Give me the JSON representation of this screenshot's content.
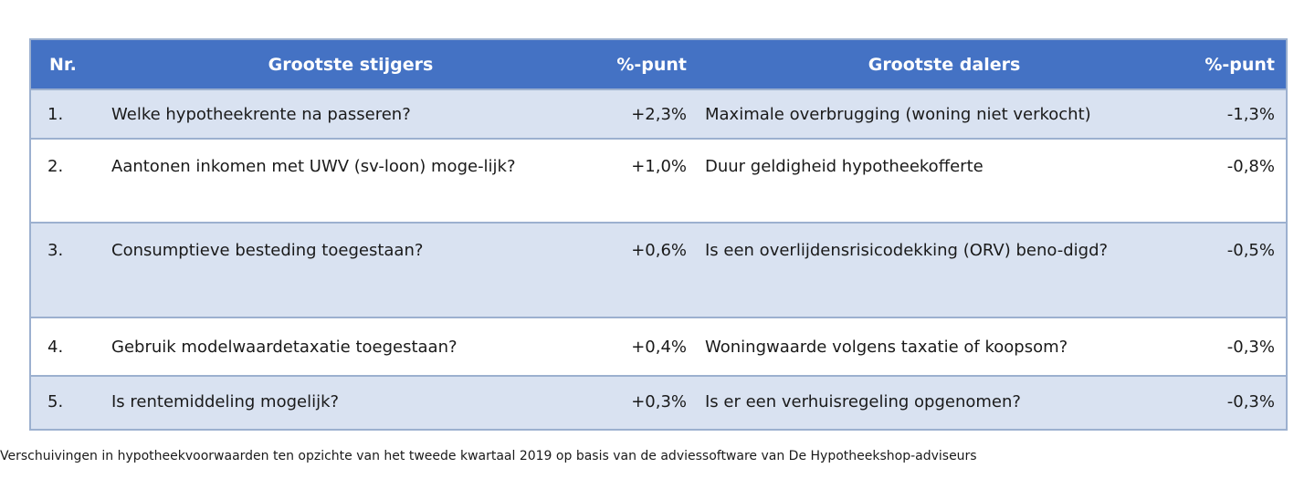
{
  "table": {
    "headers": {
      "nr": "Nr.",
      "risers": "Grootste stijgers",
      "risers_unit": "%-punt",
      "fallers": "Grootste dalers",
      "fallers_unit": "%-punt"
    },
    "rows": [
      {
        "nr": "1.",
        "riser": "Welke hypotheekrente na passeren?",
        "riser_value": "+2,3%",
        "faller": "Maximale overbrugging (woning niet verkocht)",
        "faller_value": "-1,3%"
      },
      {
        "nr": "2.",
        "riser": "Aantonen inkomen met UWV (sv-loon) moge-lijk?",
        "riser_value": "+1,0%",
        "faller": "Duur geldigheid hypotheekofferte",
        "faller_value": "-0,8%"
      },
      {
        "nr": "3.",
        "riser": "Consumptieve besteding toegestaan?",
        "riser_value": "+0,6%",
        "faller": "Is een overlijdensrisicodekking (ORV) beno-digd?",
        "faller_value": "-0,5%"
      },
      {
        "nr": "4.",
        "riser": "Gebruik modelwaardetaxatie toegestaan?",
        "riser_value": "+0,4%",
        "faller": "Woningwaarde volgens taxatie of koopsom?",
        "faller_value": "-0,3%"
      },
      {
        "nr": "5.",
        "riser": "Is rentemiddeling mogelijk?",
        "riser_value": "+0,3%",
        "faller": "Is er een verhuisregeling opgenomen?",
        "faller_value": "-0,3%"
      }
    ]
  },
  "caption": "Verschuivingen in hypotheekvoorwaarden ten opzichte van het tweede kwartaal 2019 op basis van de adviessoftware van De Hypotheekshop-adviseurs",
  "colors": {
    "header_bg": "#4472c4",
    "stripe_bg": "#d9e2f1",
    "border": "#9cb0cf"
  }
}
